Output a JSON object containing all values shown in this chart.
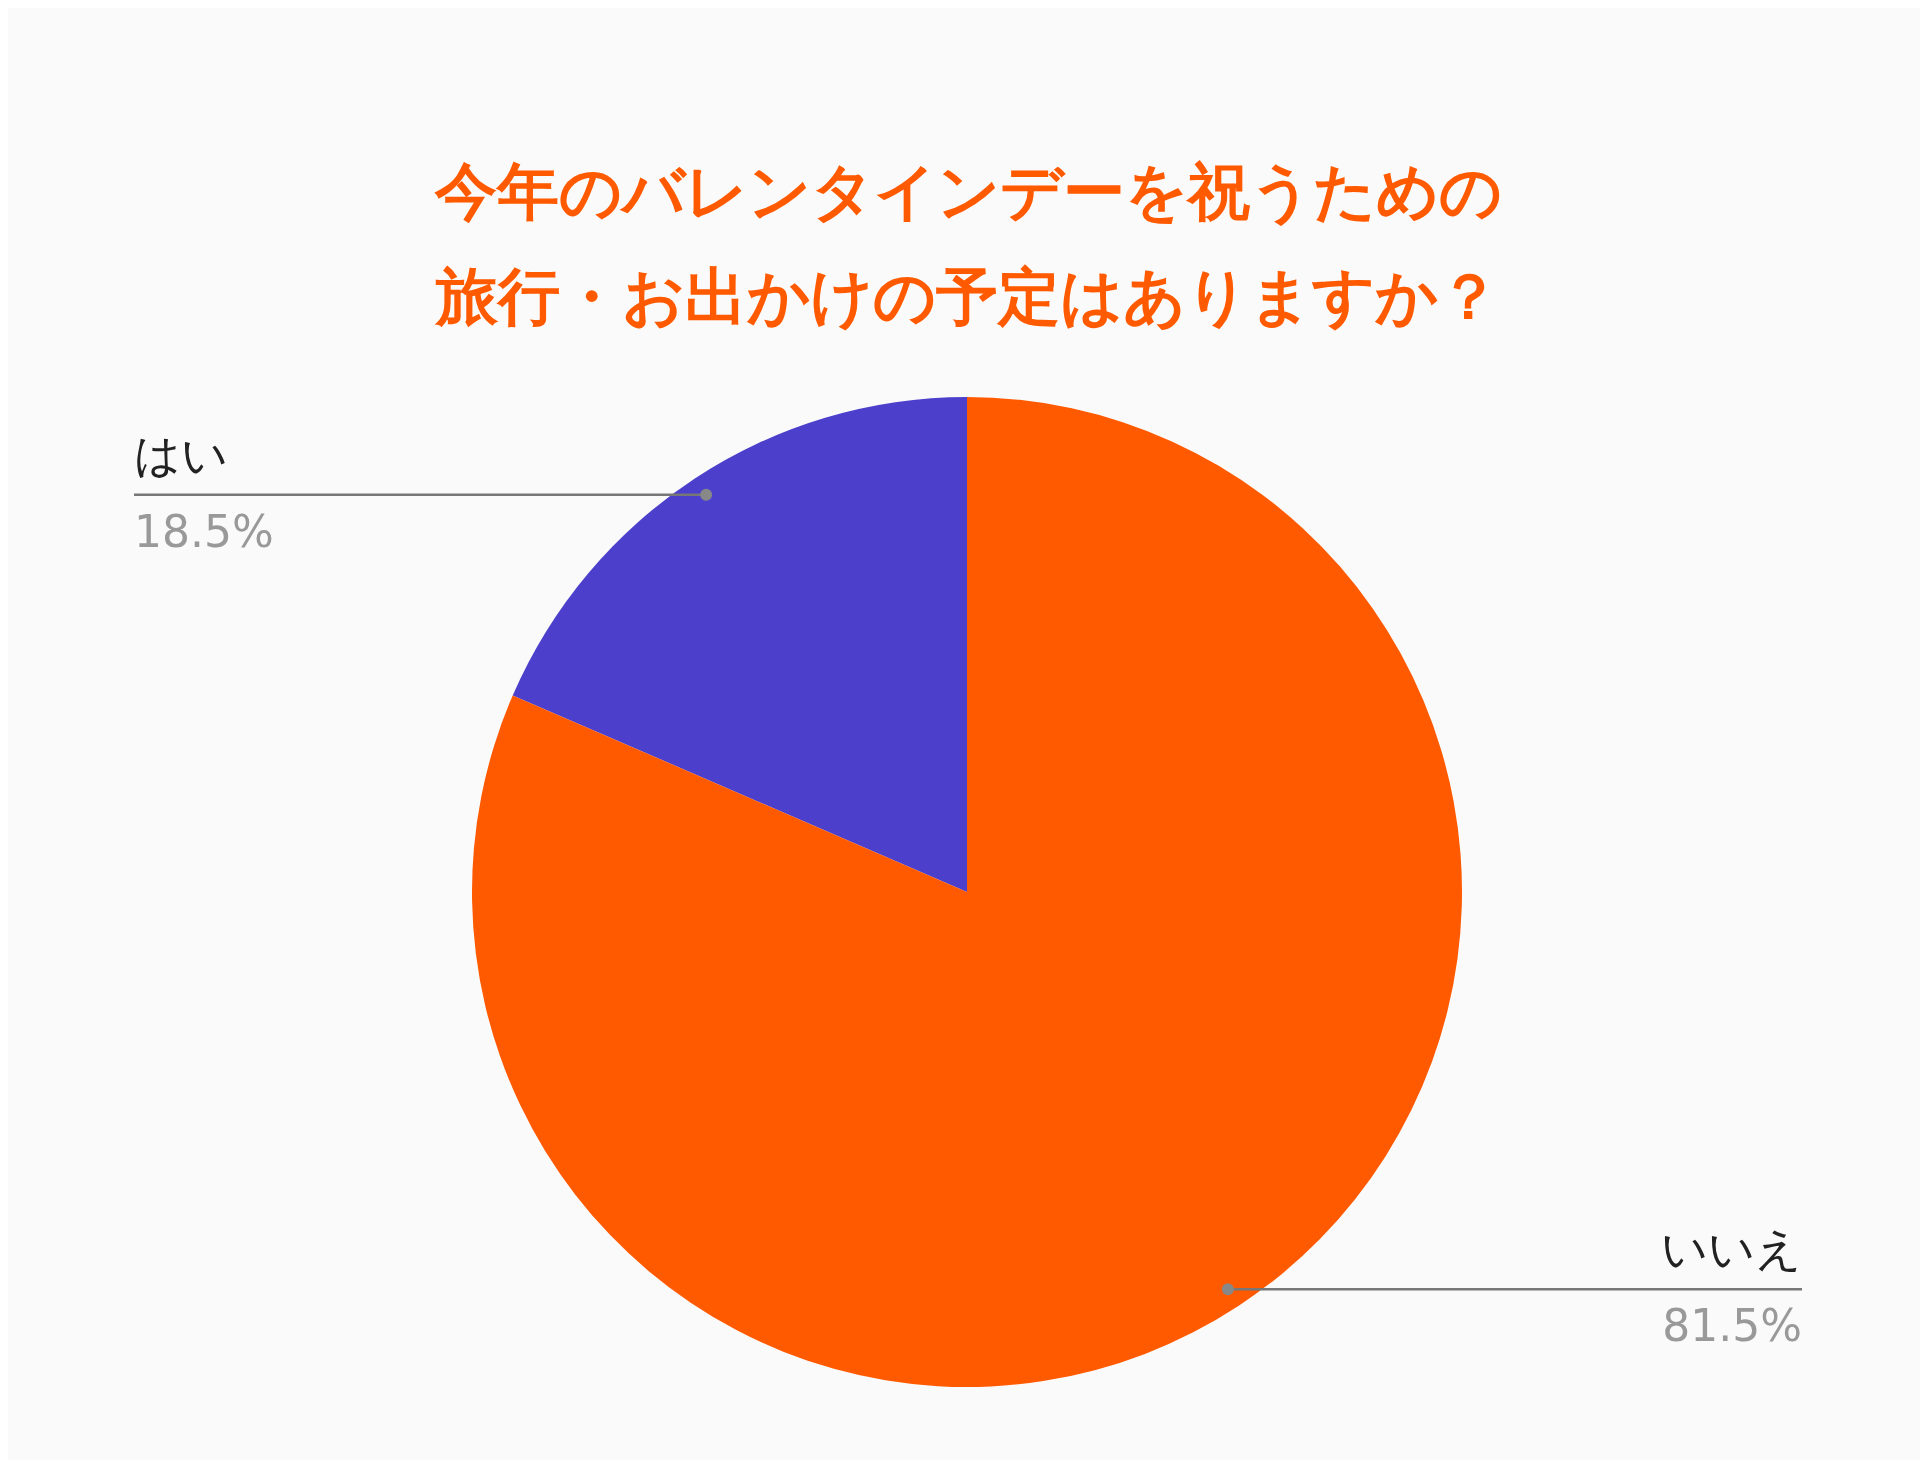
{
  "chart_data": {
    "type": "pie",
    "title": "今年のバレンタインデーを祝うための旅行・お出かけの予定はありますか？",
    "categories": [
      "はい",
      "いいえ"
    ],
    "values": [
      18.5,
      81.5
    ],
    "colors": [
      "#4b3fcb",
      "#ff5a00"
    ],
    "value_labels": [
      "18.5%",
      "81.5%"
    ]
  }
}
